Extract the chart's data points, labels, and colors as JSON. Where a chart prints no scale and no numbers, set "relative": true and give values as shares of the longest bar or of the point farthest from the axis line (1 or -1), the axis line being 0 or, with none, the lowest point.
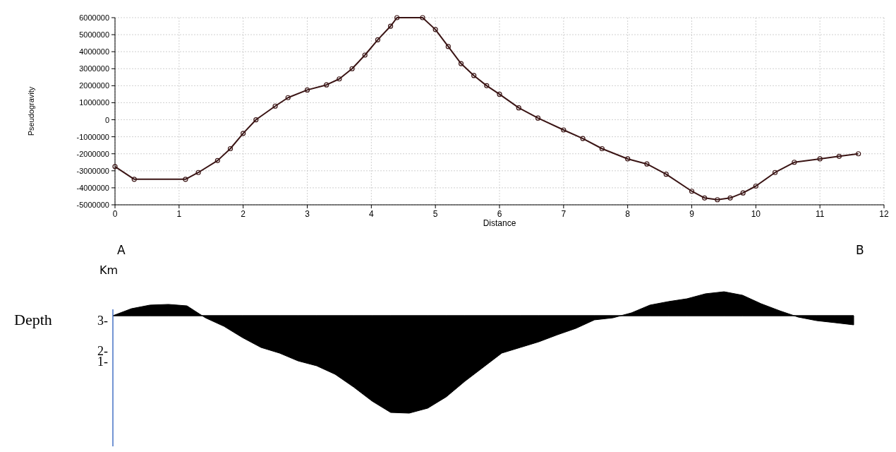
{
  "chart_data": [
    {
      "type": "line",
      "xlabel": "Distance",
      "ylabel": "Pseudogravity",
      "x": [
        0,
        0.3,
        1.1,
        1.3,
        1.6,
        1.8,
        2.0,
        2.2,
        2.5,
        2.7,
        3.0,
        3.3,
        3.5,
        3.7,
        3.9,
        4.1,
        4.3,
        4.4,
        4.8,
        5.0,
        5.2,
        5.4,
        5.6,
        5.8,
        6.0,
        6.3,
        6.6,
        7.0,
        7.3,
        7.6,
        8.0,
        8.3,
        8.6,
        9.0,
        9.2,
        9.4,
        9.6,
        9.8,
        10.0,
        10.3,
        10.6,
        11.0,
        11.3,
        11.6
      ],
      "series": [
        {
          "color": "#3a1414",
          "values": [
            -2750000,
            -3500000,
            -3500000,
            -3100000,
            -2400000,
            -1700000,
            -800000,
            0,
            800000,
            1300000,
            1750000,
            2050000,
            2400000,
            3000000,
            3800000,
            4700000,
            5500000,
            6000000,
            6000000,
            5300000,
            4300000,
            3300000,
            2600000,
            2000000,
            1500000,
            700000,
            100000,
            -600000,
            -1100000,
            -1700000,
            -2300000,
            -2600000,
            -3200000,
            -4200000,
            -4600000,
            -4700000,
            -4600000,
            -4300000,
            -3900000,
            -3100000,
            -2500000,
            -2300000,
            -2150000,
            -2000000
          ]
        }
      ],
      "xlim": [
        0,
        12
      ],
      "xticks": [
        0,
        1,
        2,
        3,
        4,
        5,
        6,
        7,
        8,
        9,
        10,
        11,
        12
      ],
      "ylim": [
        -5000000,
        6000000
      ],
      "yticks": [
        -5000000,
        -4000000,
        -3000000,
        -2000000,
        -1000000,
        0,
        1000000,
        2000000,
        3000000,
        4000000,
        5000000,
        6000000
      ],
      "grid": true,
      "marker": "circle",
      "line_style": "solid"
    },
    {
      "type": "area",
      "relative": true,
      "ylabel": "Depth",
      "annotations": [
        "A",
        "B",
        "Km",
        "3-",
        "2-",
        "1-"
      ],
      "categories": [
        null,
        null,
        null,
        null,
        null,
        null,
        null,
        null,
        null,
        null,
        null,
        null,
        null,
        null,
        null,
        null,
        null,
        null,
        null,
        null,
        null,
        null,
        null,
        null,
        null,
        null,
        null,
        null,
        null,
        null,
        null,
        null,
        null,
        null,
        null,
        null,
        null,
        null,
        null,
        null,
        null
      ],
      "series": [
        {
          "color": "#000000",
          "values": [
            0,
            0.072,
            0.109,
            0.116,
            0.101,
            -0.022,
            -0.109,
            -0.225,
            -0.326,
            -0.384,
            -0.464,
            -0.514,
            -0.601,
            -0.732,
            -0.877,
            -0.993,
            -1,
            -0.949,
            -0.833,
            -0.674,
            -0.529,
            -0.384,
            -0.326,
            -0.268,
            -0.196,
            -0.13,
            -0.043,
            -0.022,
            0.029,
            0.109,
            0.145,
            0.174,
            0.225,
            0.246,
            0.21,
            0.123,
            0.051,
            -0.014,
            -0.051,
            -0.072,
            -0.094
          ]
        }
      ]
    }
  ]
}
